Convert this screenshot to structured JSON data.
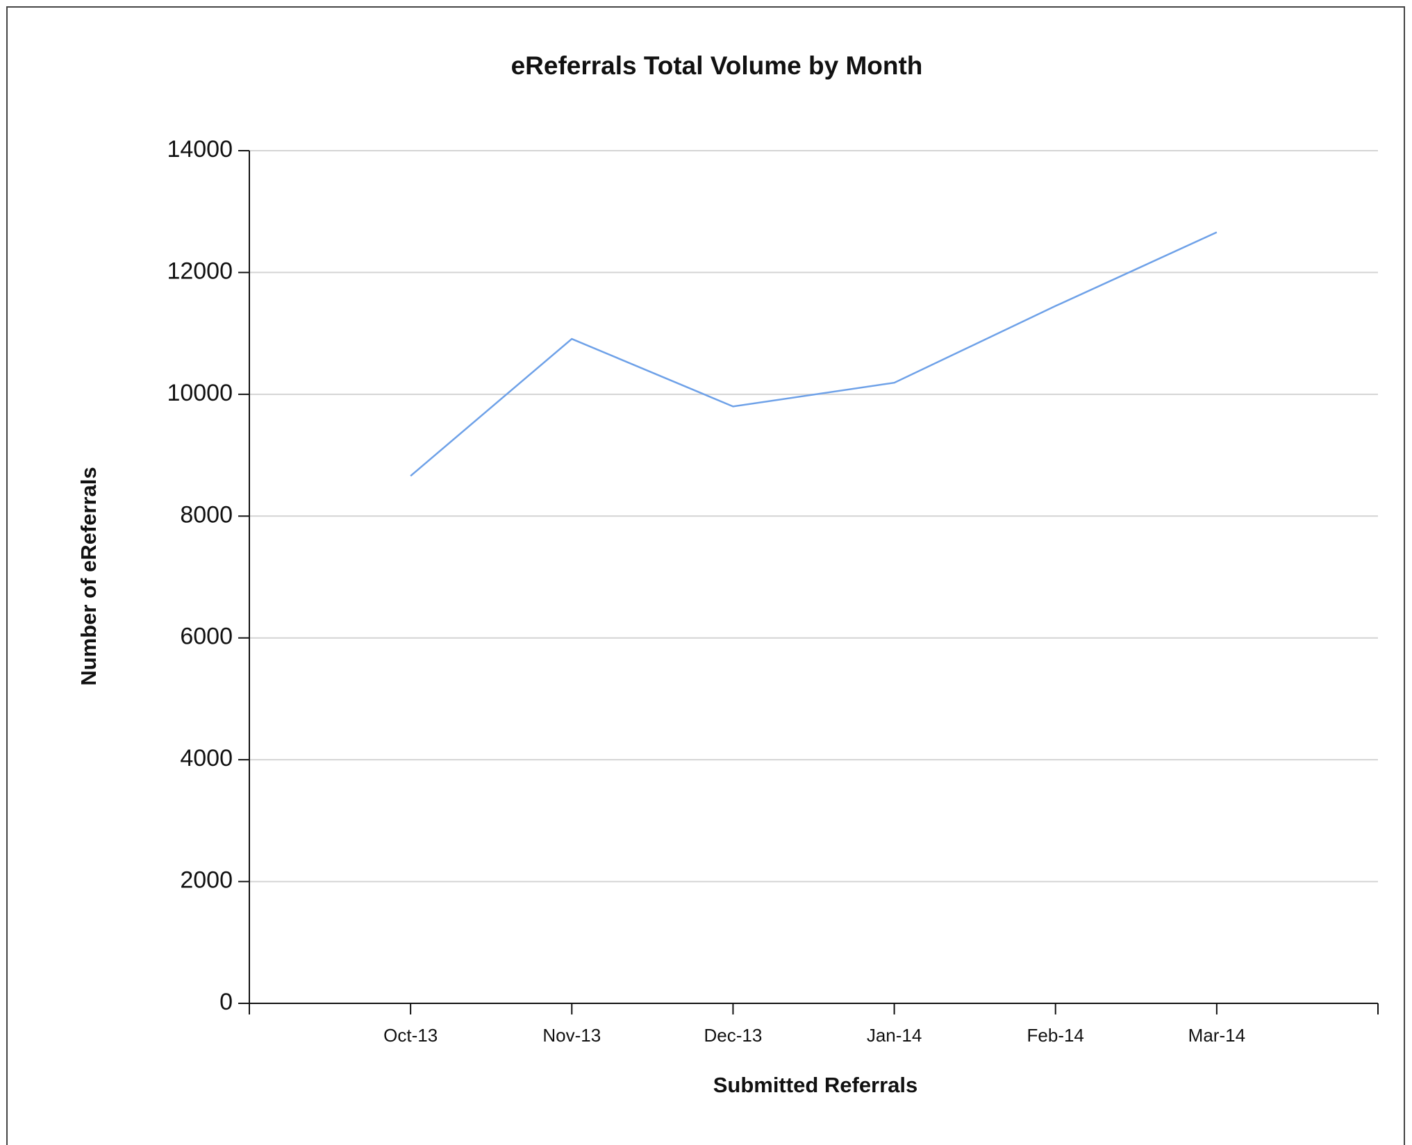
{
  "chart_data": {
    "type": "line",
    "title": "eReferrals Total Volume by Month",
    "x_label": "Submitted Referrals",
    "y_label": "Number of eReferrals",
    "categories": [
      "Oct-13",
      "Nov-13",
      "Dec-13",
      "Jan-14",
      "Feb-14",
      "Mar-14"
    ],
    "series": [
      {
        "color": "#6ea1e8",
        "values": [
          8660,
          10910,
          9800,
          10190,
          11450,
          12660
        ]
      }
    ],
    "ylim": [
      0,
      14000
    ],
    "yticks": [
      0,
      2000,
      4000,
      6000,
      8000,
      10000,
      12000,
      14000
    ],
    "grid": true
  }
}
